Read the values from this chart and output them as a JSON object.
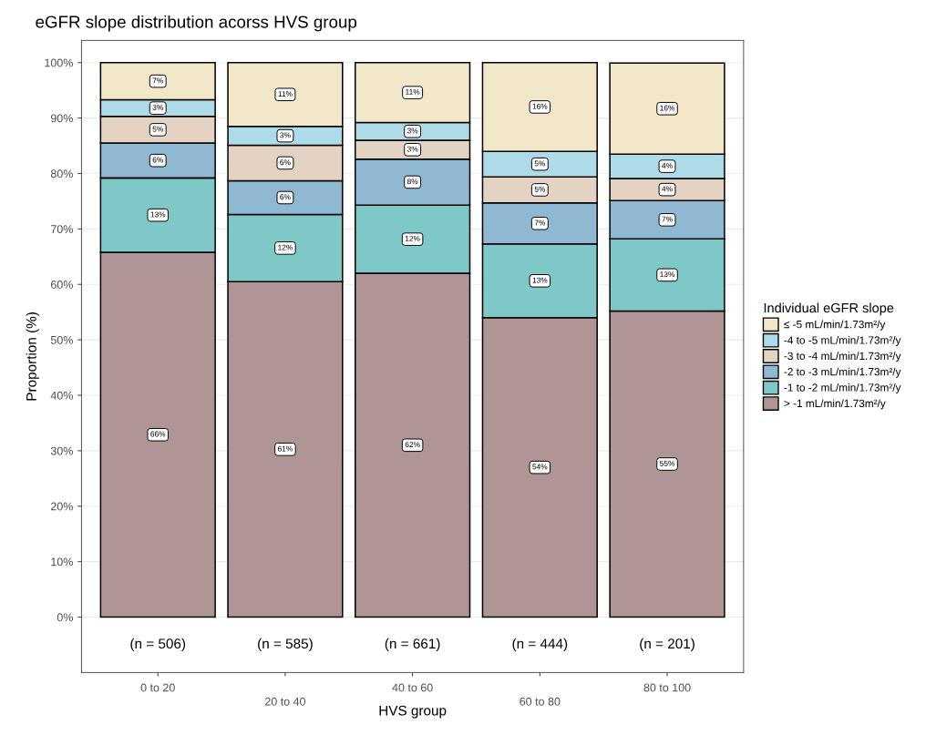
{
  "chart_data": {
    "type": "bar",
    "stacked": true,
    "title": "eGFR slope distribution acorss HVS group",
    "xlabel": "HVS group",
    "ylabel": "Proportion (%)",
    "legend_title": "Individual eGFR slope",
    "legend": "right",
    "categories": [
      "0 to 20",
      "20 to 40",
      "40 to 60",
      "60 to 80",
      "80 to 100"
    ],
    "series": [
      {
        "name": "> -1 mL/min/1.73m²/y",
        "color": "#b09597",
        "values": [
          65.8,
          60.5,
          62.0,
          54.0,
          55.2
        ],
        "value_labels": [
          "66%",
          "61%",
          "62%",
          "54%",
          "55%"
        ]
      },
      {
        "name": "-1 to -2 mL/min/1.73m²/y",
        "color": "#7ec8c8",
        "values": [
          13.4,
          12.1,
          12.3,
          13.3,
          13.0
        ],
        "value_labels": [
          "13%",
          "12%",
          "12%",
          "13%",
          "13%"
        ]
      },
      {
        "name": "-2 to -3 mL/min/1.73m²/y",
        "color": "#8fb8d3",
        "values": [
          6.3,
          6.1,
          8.3,
          7.4,
          6.9
        ],
        "value_labels": [
          "6%",
          "6%",
          "8%",
          "7%",
          "7%"
        ]
      },
      {
        "name": "-3 to -4 mL/min/1.73m²/y",
        "color": "#e4d2c3",
        "values": [
          4.8,
          6.4,
          3.4,
          4.7,
          4.0
        ],
        "value_labels": [
          "5%",
          "6%",
          "3%",
          "5%",
          "4%"
        ]
      },
      {
        "name": "-4 to -5 mL/min/1.73m²/y",
        "color": "#aedbe8",
        "values": [
          3.0,
          3.4,
          3.2,
          4.6,
          4.4
        ],
        "value_labels": [
          "3%",
          "3%",
          "3%",
          "5%",
          "4%"
        ]
      },
      {
        "name": "≤ -5 mL/min/1.73m²/y",
        "color": "#f3e7c9",
        "values": [
          6.7,
          11.5,
          10.8,
          16.0,
          16.4
        ],
        "value_labels": [
          "7%",
          "11%",
          "11%",
          "16%",
          "16%"
        ]
      }
    ],
    "ylim": [
      -10,
      104
    ],
    "yticks": [
      {
        "value": 0,
        "label": "0%"
      },
      {
        "value": 10,
        "label": "10%"
      },
      {
        "value": 20,
        "label": "20%"
      },
      {
        "value": 30,
        "label": "30%"
      },
      {
        "value": 40,
        "label": "40%"
      },
      {
        "value": 50,
        "label": "50%"
      },
      {
        "value": 60,
        "label": "60%"
      },
      {
        "value": 70,
        "label": "70%"
      },
      {
        "value": 80,
        "label": "80%"
      },
      {
        "value": 90,
        "label": "90%"
      },
      {
        "value": 100,
        "label": "100%"
      }
    ],
    "grid": "y",
    "annotations": [
      "(n = 506)",
      "(n = 585)",
      "(n = 661)",
      "(n = 444)",
      "(n = 201)"
    ]
  }
}
